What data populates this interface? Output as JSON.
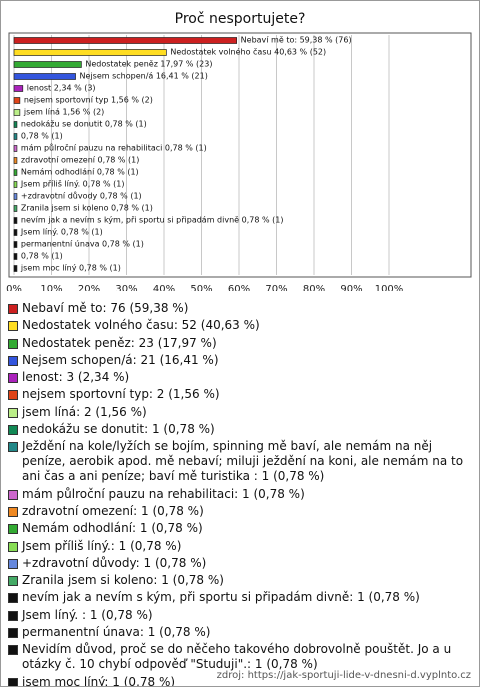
{
  "chart_data": {
    "type": "bar",
    "orientation": "horizontal",
    "title": "Proč nesportujete?",
    "categories": [
      "Nebaví mě to: 76 (59,38 %)",
      "Nedostatek volného času: 52 (40,63 %)",
      "Nedostatek peněz: 23 (17,97 %)",
      "Nejsem schopen/á: 21 (16,41 %)",
      "lenost: 3 (2,34 %)",
      "nejsem sportovní typ: 2 (1,56 %)",
      "jsem líná: 2 (1,56 %)",
      "nedokážu se donutit: 1 (0,78 %)",
      "Ježdění na kole/lyžích se bojím, spinning mě baví, ale nemám na něj peníze, aerobik apod. mě nebaví; miluji ježdění na koni, ale nemám na to ani čas a ani peníze; baví mě turistika : 1 (0,78 %)",
      "mám půlroční pauzu na rehabilitaci: 1 (0,78 %)",
      "zdravotní omezení: 1 (0,78 %)",
      "Nemám odhodlání: 1 (0,78 %)",
      "Jsem příliš líný.: 1 (0,78 %)",
      "+zdravotní důvody: 1 (0,78 %)",
      "Zranila jsem si koleno: 1 (0,78 %)",
      "nevím jak a nevím s kým, při sportu si připadám divně: 1 (0,78 %)",
      "Jsem líný. : 1 (0,78 %)",
      "permanentní únava: 1 (0,78 %)",
      "Nevidím důvod, proč se do něčeho takového dobrovolně pouštět. Jo a u otázky č. 10 chybí odpověď \"Studuji\".: 1 (0,78 %)",
      "jsem moc líný: 1 (0,78 %)"
    ],
    "values": [
      59.38,
      40.63,
      17.97,
      16.41,
      2.34,
      1.56,
      1.56,
      0.78,
      0.78,
      0.78,
      0.78,
      0.78,
      0.78,
      0.78,
      0.78,
      0.78,
      0.78,
      0.78,
      0.78,
      0.78
    ],
    "value_labels": [
      "Nebaví mě to: 59,38 % (76)",
      "Nedostatek volného času 40,63 % (52)",
      "Nedostatek peněz 17,97 % (23)",
      "Nejsem schopen/á 16,41 % (21)",
      "lenost 2,34 % (3)",
      "nejsem sportovní typ 1,56 % (2)",
      "jsem líná 1,56 % (2)",
      "nedokážu se donutit 0,78 % (1)",
      "0,78 % (1)",
      "mám půlroční pauzu na rehabilitaci 0,78 % (1)",
      "zdravotní omezení 0,78 % (1)",
      "Nemám odhodlání 0,78 % (1)",
      "Jsem příliš líný. 0,78 % (1)",
      "+zdravotní důvody 0,78 % (1)",
      "Zranila jsem si koleno 0,78 % (1)",
      "nevím jak a nevím s kým, při sportu si připadám divně 0,78 % (1)",
      "Jsem líný. 0,78 % (1)",
      "permanentní únava 0,78 % (1)",
      "0,78 % (1)",
      "jsem moc líný 0,78 % (1)"
    ],
    "colors": [
      "#cc2020",
      "#ffdd22",
      "#33aa33",
      "#3355dd",
      "#aa22bb",
      "#e04418",
      "#bbee88",
      "#118855",
      "#228888",
      "#cc66cc",
      "#ee8822",
      "#33aa33",
      "#88dd55",
      "#6688dd",
      "#44aa66",
      "#111111",
      "#111111",
      "#111111",
      "#111111",
      "#111111"
    ],
    "xlim": [
      0,
      100
    ],
    "xticks": [
      {
        "value": 0,
        "label": "0%"
      },
      {
        "value": 10,
        "label": "10%"
      },
      {
        "value": 20,
        "label": "20%"
      },
      {
        "value": 30,
        "label": "30%"
      },
      {
        "value": 40,
        "label": "40%"
      },
      {
        "value": 50,
        "label": "50%"
      },
      {
        "value": 60,
        "label": "60%"
      },
      {
        "value": 70,
        "label": "70%"
      },
      {
        "value": 80,
        "label": "80%"
      },
      {
        "value": 90,
        "label": "90%"
      },
      {
        "value": 100,
        "label": "100%"
      }
    ],
    "grid": true
  },
  "source": "zdroj: https://jak-sportuji-lide-v-dnesni-d.vyplnto.cz"
}
